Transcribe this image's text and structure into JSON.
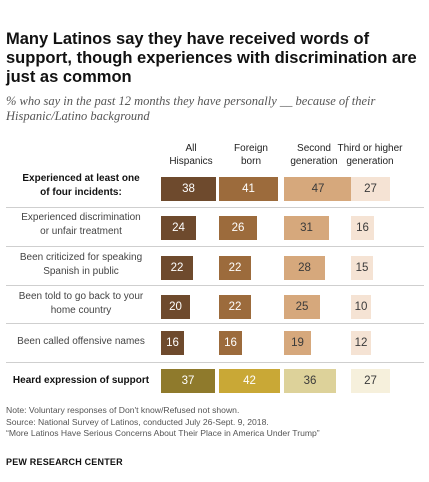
{
  "title": "Many Latinos say they have received words of support, though experiences with discrimination are just as common",
  "subtitle": "% who say in the past 12 months they have personally __ because of their Hispanic/Latino background",
  "columns": [
    {
      "name": "All Hispanics",
      "line1": "All",
      "line2": "Hispanics"
    },
    {
      "name": "Foreign born",
      "line1": "Foreign",
      "line2": "born"
    },
    {
      "name": "Second generation",
      "line1": "Second",
      "line2": "generation"
    },
    {
      "name": "Third or higher generation",
      "line1": "Third or higher",
      "line2": "generation"
    }
  ],
  "colors": {
    "discrimination": [
      "#6e4a2d",
      "#9c6b3c",
      "#d6a87c",
      "#f5e3d4"
    ],
    "support": [
      "#8f7a2c",
      "#c9a836",
      "#ddd29a",
      "#f6f0dc"
    ]
  },
  "chart_data": {
    "type": "table",
    "rows": [
      {
        "line1": "Experienced at least one",
        "line2": "of four incidents:",
        "bold": true,
        "group": "discrimination",
        "values": [
          38,
          41,
          47,
          27
        ]
      },
      {
        "line1": "Experienced discrimination",
        "line2": "or unfair treatment",
        "bold": false,
        "group": "discrimination",
        "values": [
          24,
          26,
          31,
          16
        ]
      },
      {
        "line1": "Been criticized for speaking",
        "line2": "Spanish in public",
        "bold": false,
        "group": "discrimination",
        "values": [
          22,
          22,
          28,
          15
        ]
      },
      {
        "line1": "Been told to go back to your",
        "line2": "home country",
        "bold": false,
        "group": "discrimination",
        "values": [
          20,
          22,
          25,
          10
        ]
      },
      {
        "line1": "Been called offensive names",
        "line2": "",
        "bold": false,
        "group": "discrimination",
        "values": [
          16,
          16,
          19,
          12
        ]
      },
      {
        "line1": "Heard expression of support",
        "line2": "",
        "bold": true,
        "group": "support",
        "values": [
          37,
          42,
          36,
          27
        ]
      }
    ]
  },
  "notes": [
    "Note: Voluntary responses of Don't know/Refused not shown.",
    "Source: National Survey of Latinos, conducted July 26-Sept. 9, 2018.",
    "“More Latinos Have Serious Concerns About Their Place in America Under Trump”"
  ],
  "source_label": "PEW RESEARCH CENTER"
}
